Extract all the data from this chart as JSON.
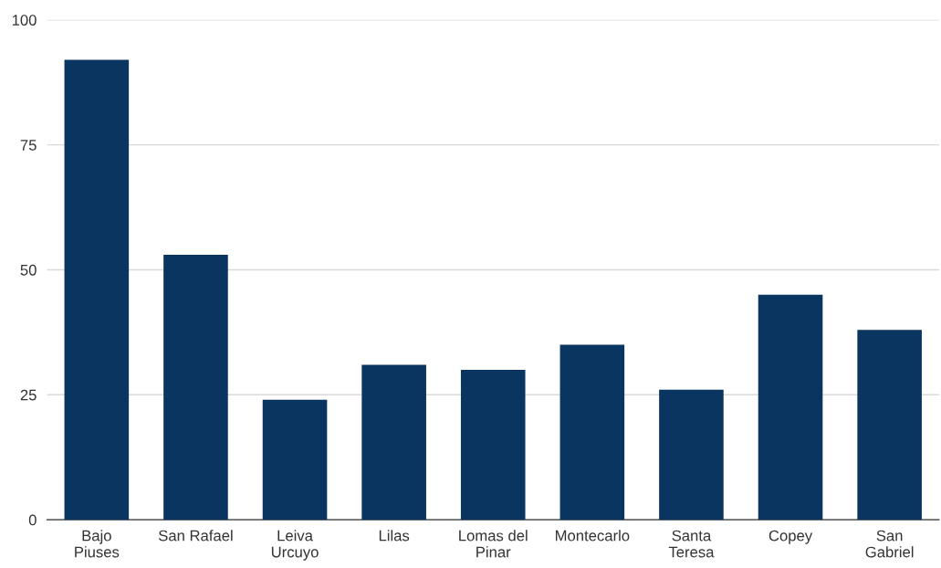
{
  "chart_data": {
    "type": "bar",
    "categories": [
      "Bajo\nPiuses",
      "San Rafael",
      "Leiva\nUrcuyo",
      "Lilas",
      "Lomas del\nPinar",
      "Montecarlo",
      "Santa\nTeresa",
      "Copey",
      "San\nGabriel"
    ],
    "values": [
      92,
      53,
      24,
      31,
      30,
      35,
      26,
      45,
      38
    ],
    "color": "#0b3561",
    "ylim": [
      0,
      100
    ],
    "yticks": [
      0,
      25,
      50,
      75,
      100
    ],
    "grid": "y",
    "legend": false
  }
}
